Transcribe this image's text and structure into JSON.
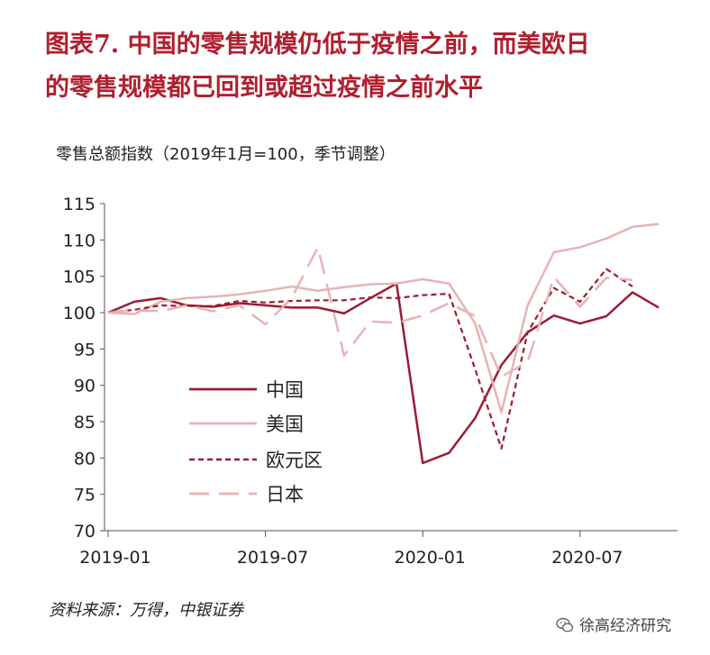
{
  "header": {
    "title_line1": "图表7. 中国的零售规模仍低于疫情之前，而美欧日",
    "title_line2": "的零售规模都已回到或超过疫情之前水平"
  },
  "subtitle": "零售总额指数（2019年1月=100，季节调整）",
  "footer": {
    "source": "资料来源：万得，中银证券",
    "brand": "徐高经济研究",
    "brand_icon": "wechat-icon"
  },
  "chart_data": {
    "type": "line",
    "title": "",
    "xlabel": "",
    "ylabel": "",
    "x": [
      "2019-01",
      "2019-02",
      "2019-03",
      "2019-04",
      "2019-05",
      "2019-06",
      "2019-07",
      "2019-08",
      "2019-09",
      "2019-10",
      "2019-11",
      "2019-12",
      "2020-01",
      "2020-02",
      "2020-03",
      "2020-04",
      "2020-05",
      "2020-06",
      "2020-07",
      "2020-08",
      "2020-09",
      "2020-10",
      "2020-11"
    ],
    "xticks": [
      "2019-01",
      "2019-07",
      "2020-01",
      "2020-07"
    ],
    "ylim": [
      70,
      115
    ],
    "yticks": [
      70,
      75,
      80,
      85,
      90,
      95,
      100,
      105,
      110,
      115
    ],
    "grid": false,
    "legend_position": "lower-left",
    "series": [
      {
        "name": "中国",
        "color": "#9b1b35",
        "dash": "solid",
        "width": 2.5,
        "values": [
          100,
          101.5,
          102,
          101,
          100.8,
          101.3,
          101,
          100.7,
          100.7,
          99.9,
          102,
          104,
          79.3,
          80.7,
          85.5,
          92.8,
          97.3,
          99.6,
          98.5,
          99.5,
          102.8,
          100.7,
          null
        ]
      },
      {
        "name": "美国",
        "color": "#e7b3b4",
        "dash": "solid",
        "width": 2.5,
        "values": [
          100,
          99.8,
          101.5,
          102,
          102.2,
          102.5,
          103,
          103.6,
          103,
          103.5,
          103.9,
          104,
          104.6,
          104,
          98.5,
          86.3,
          101,
          108.3,
          109,
          110.2,
          111.8,
          112.2,
          null
        ]
      },
      {
        "name": "欧元区",
        "color": "#9b1b35",
        "dash": "dashed",
        "width": 2.2,
        "values": [
          100,
          100.4,
          101,
          100.9,
          100.9,
          101.6,
          101.4,
          101.6,
          101.7,
          101.7,
          102.1,
          102,
          102.4,
          102.6,
          92.2,
          81.3,
          97.3,
          103.4,
          101.5,
          106,
          103.6,
          null,
          null
        ]
      },
      {
        "name": "日本",
        "color": "#e7b3b4",
        "dash": "longdash",
        "width": 2.5,
        "values": [
          100,
          100.3,
          100.2,
          101,
          100.2,
          101,
          98.4,
          102,
          109,
          94.1,
          98.8,
          98.6,
          99.6,
          101.3,
          99.5,
          91.2,
          93.2,
          104.9,
          100.8,
          104.8,
          104.5,
          null,
          null
        ]
      }
    ]
  }
}
